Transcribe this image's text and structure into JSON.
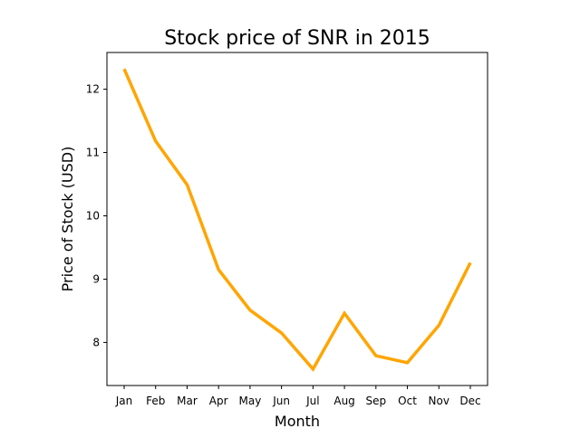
{
  "chart_data": {
    "type": "line",
    "title": "Stock price of SNR in 2015",
    "xlabel": "Month",
    "ylabel": "Price of Stock (USD)",
    "categories": [
      "Jan",
      "Feb",
      "Mar",
      "Apr",
      "May",
      "Jun",
      "Jul",
      "Aug",
      "Sep",
      "Oct",
      "Nov",
      "Dec"
    ],
    "series": [
      {
        "values": [
          12.32,
          11.18,
          10.49,
          9.15,
          8.51,
          8.15,
          7.58,
          8.46,
          7.79,
          7.68,
          8.27,
          9.26
        ],
        "color": "#FFA500"
      }
    ],
    "yticks": [
      8,
      9,
      10,
      11,
      12
    ],
    "ylim": [
      7.32,
      12.58
    ],
    "grid": false,
    "legend": false
  }
}
